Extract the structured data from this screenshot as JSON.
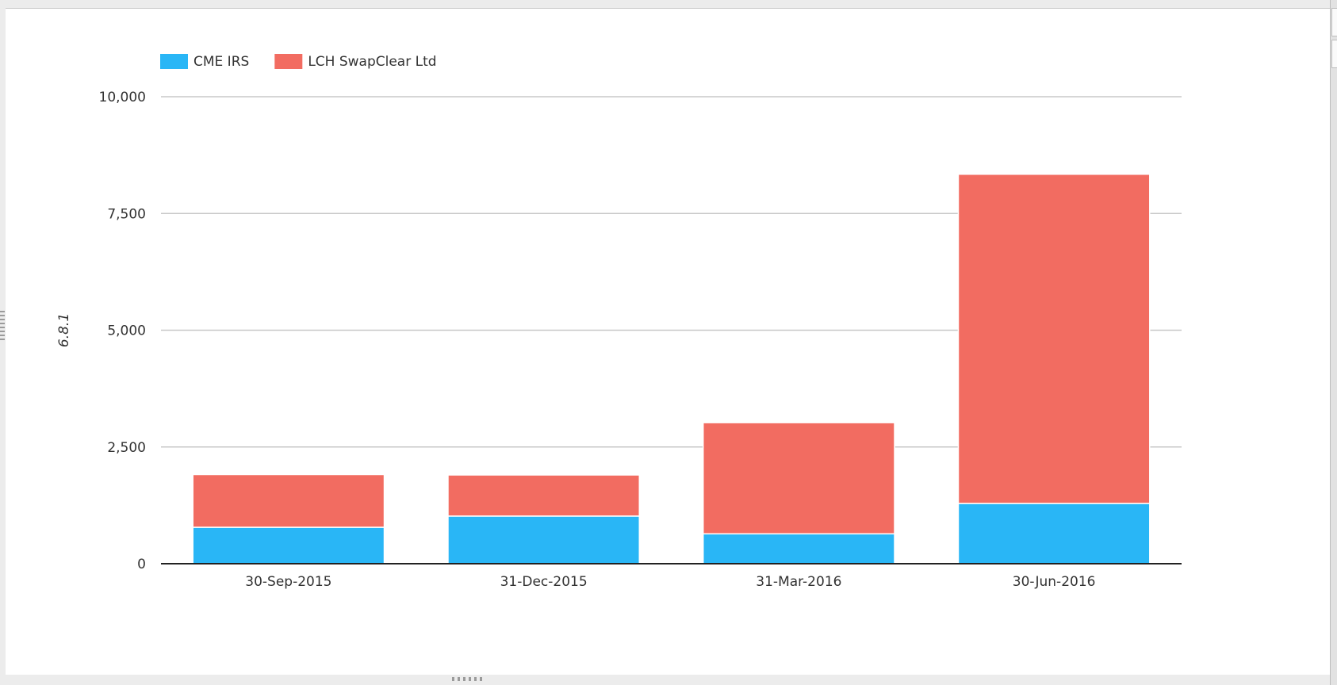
{
  "chart_data": {
    "type": "bar",
    "stacked": true,
    "categories": [
      "30-Sep-2015",
      "31-Dec-2015",
      "31-Mar-2016",
      "30-Jun-2016"
    ],
    "series": [
      {
        "name": "CME IRS",
        "color": "#29b6f6",
        "values": [
          780,
          1020,
          640,
          1290
        ]
      },
      {
        "name": "LCH SwapClear Ltd",
        "color": "#f26c61",
        "values": [
          1130,
          880,
          2380,
          7050
        ]
      }
    ],
    "ylabel": "6.8.1",
    "xlabel": "",
    "ylim": [
      0,
      10000
    ],
    "yticks": [
      {
        "value": 0,
        "label": "0"
      },
      {
        "value": 2500,
        "label": "2,500"
      },
      {
        "value": 5000,
        "label": "5,000"
      },
      {
        "value": 7500,
        "label": "7,500"
      },
      {
        "value": 10000,
        "label": "10,000"
      }
    ],
    "grid": true,
    "legend_position": "top-left"
  }
}
